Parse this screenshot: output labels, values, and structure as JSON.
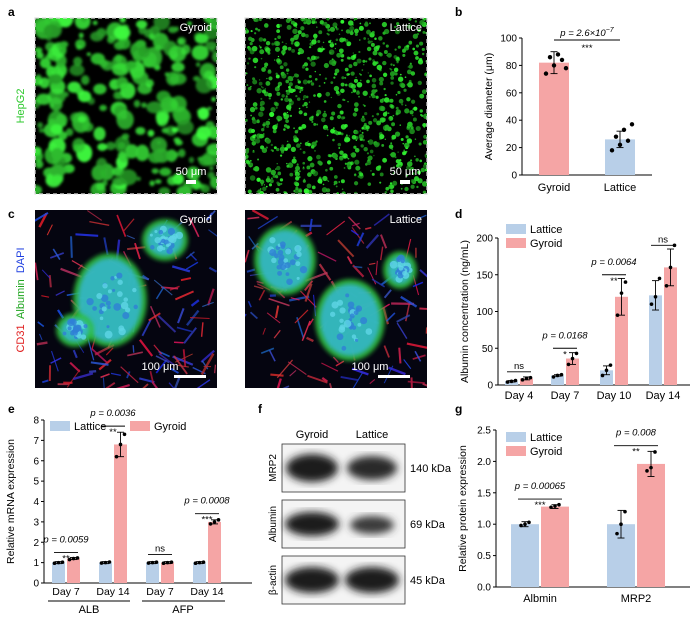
{
  "panel_letters": [
    "a",
    "b",
    "c",
    "d",
    "e",
    "f",
    "g"
  ],
  "panel_a": {
    "ylabel": "HepG2",
    "img1_label": "Gyroid",
    "img2_label": "Lattice",
    "scale1": "50 μm",
    "scale2": "50 μm"
  },
  "panel_c": {
    "ylabel_parts": [
      "CD31",
      "Albumin",
      "DAPI"
    ],
    "img1_label": "Gyroid",
    "img2_label": "Lattice",
    "scale1": "100 μm",
    "scale2": "100 μm"
  },
  "panel_f": {
    "col1": "Gyroid",
    "col2": "Lattice",
    "rows": [
      "MRP2",
      "Albumin",
      "β-actin"
    ],
    "kda": [
      "140 kDa",
      "69 kDa",
      "45 kDa"
    ]
  },
  "colors": {
    "gyroid": "#f5a5a5",
    "lattice": "#b8cfe8"
  },
  "chart_data": [
    {
      "id": "b",
      "type": "bar",
      "categories": [
        "Gyroid",
        "Lattice"
      ],
      "values": [
        82,
        26
      ],
      "errors": [
        8,
        6
      ],
      "points": [
        [
          74,
          80,
          84,
          86,
          88,
          78
        ],
        [
          18,
          22,
          25,
          28,
          33,
          37
        ]
      ],
      "ylabel": "Average diameter (μm)",
      "ylim": [
        0,
        100
      ],
      "yticks": [
        0,
        20,
        40,
        60,
        80,
        100
      ],
      "annotation": {
        "p": "p = 2.6×10",
        "exp": "−7",
        "stars": "***"
      }
    },
    {
      "id": "d",
      "type": "bar",
      "categories": [
        "Day 4",
        "Day 7",
        "Day 10",
        "Day 14"
      ],
      "series": [
        {
          "name": "Lattice",
          "values": [
            5,
            13,
            20,
            122
          ],
          "errors": [
            1,
            1,
            6,
            20
          ],
          "points": [
            [
              4,
              5,
              6
            ],
            [
              11,
              13,
              14
            ],
            [
              13,
              20,
              27
            ],
            [
              110,
              120,
              145
            ]
          ]
        },
        {
          "name": "Gyroid",
          "values": [
            9,
            36,
            120,
            160
          ],
          "errors": [
            2,
            8,
            25,
            25
          ],
          "points": [
            [
              7,
              9,
              10
            ],
            [
              28,
              36,
              43
            ],
            [
              95,
              125,
              140
            ],
            [
              135,
              160,
              190
            ]
          ]
        }
      ],
      "ylabel": "Albumin concentration (ng/mL)",
      "ylim": [
        0,
        200
      ],
      "yticks": [
        0,
        50,
        100,
        150,
        200
      ],
      "annotations": [
        {
          "cat": 0,
          "p": "",
          "stars": "ns",
          "y": 18
        },
        {
          "cat": 1,
          "p": "p = 0.0168",
          "stars": "*",
          "y": 50
        },
        {
          "cat": 2,
          "p": "p = 0.0064",
          "stars": "**",
          "y": 150
        },
        {
          "cat": 3,
          "p": "",
          "stars": "ns",
          "y": 190
        }
      ]
    },
    {
      "id": "e",
      "type": "bar",
      "categories": [
        "Day 7",
        "Day 14",
        "Day 7",
        "Day 14"
      ],
      "groups": [
        "ALB",
        "AFP"
      ],
      "series": [
        {
          "name": "Lattice",
          "values": [
            1.0,
            1.0,
            1.0,
            1.0
          ],
          "errors": [
            0.05,
            0.05,
            0.05,
            0.05
          ],
          "points": [
            [
              0.97,
              1.0,
              1.02
            ],
            [
              0.98,
              1.0,
              1.03
            ],
            [
              0.98,
              1.0,
              1.02
            ],
            [
              0.97,
              1.0,
              1.02
            ]
          ]
        },
        {
          "name": "Gyroid",
          "values": [
            1.2,
            6.8,
            1.0,
            3.0
          ],
          "errors": [
            0.05,
            0.6,
            0.05,
            0.1
          ],
          "points": [
            [
              1.15,
              1.2,
              1.23
            ],
            [
              6.2,
              6.8,
              7.3
            ],
            [
              0.97,
              1.0,
              1.02
            ],
            [
              2.9,
              3.0,
              3.1
            ]
          ]
        }
      ],
      "ylabel": "Relative mRNA expression",
      "ylim": [
        0,
        8
      ],
      "yticks": [
        0,
        1,
        2,
        3,
        4,
        5,
        6,
        7,
        8
      ],
      "annotations": [
        {
          "cat": 0,
          "p": "p = 0.0059",
          "stars": "**",
          "y": 1.5
        },
        {
          "cat": 1,
          "p": "p = 0.0036",
          "stars": "**",
          "y": 7.7
        },
        {
          "cat": 2,
          "p": "",
          "stars": "ns",
          "y": 1.4
        },
        {
          "cat": 3,
          "p": "p = 0.0008",
          "stars": "***",
          "y": 3.4
        }
      ]
    },
    {
      "id": "g",
      "type": "bar",
      "categories": [
        "Albmin",
        "MRP2"
      ],
      "series": [
        {
          "name": "Lattice",
          "values": [
            1.0,
            1.0
          ],
          "errors": [
            0.04,
            0.22
          ],
          "points": [
            [
              0.98,
              1.0,
              1.03
            ],
            [
              0.85,
              1.0,
              1.2
            ]
          ]
        },
        {
          "name": "Gyroid",
          "values": [
            1.28,
            1.96
          ],
          "errors": [
            0.03,
            0.2
          ],
          "points": [
            [
              1.27,
              1.29,
              1.31
            ],
            [
              1.85,
              1.9,
              2.15
            ]
          ]
        }
      ],
      "ylabel": "Relative protein expression",
      "ylim": [
        0,
        2.5
      ],
      "yticks": [
        0.0,
        0.5,
        1.0,
        1.5,
        2.0,
        2.5
      ],
      "annotations": [
        {
          "cat": 0,
          "p": "p = 0.00065",
          "stars": "***",
          "y": 1.4
        },
        {
          "cat": 1,
          "p": "p = 0.008",
          "stars": "**",
          "y": 2.25
        }
      ]
    }
  ]
}
